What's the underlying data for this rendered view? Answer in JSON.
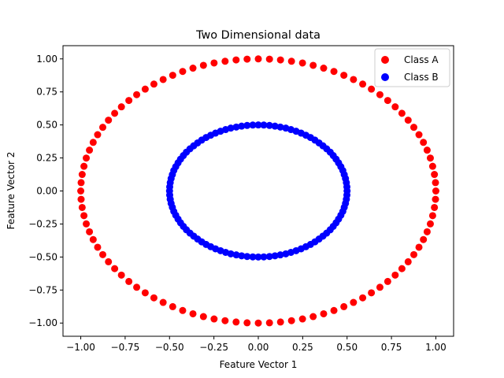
{
  "chart_data": {
    "type": "scatter",
    "title": "Two Dimensional data",
    "xlabel": "Feature Vector 1",
    "ylabel": "Feature Vector 2",
    "xlim": [
      -1.1,
      1.1
    ],
    "ylim": [
      -1.1,
      1.1
    ],
    "xticks": [
      -1.0,
      -0.75,
      -0.5,
      -0.25,
      0.0,
      0.25,
      0.5,
      0.75,
      1.0
    ],
    "yticks": [
      -1.0,
      -0.75,
      -0.5,
      -0.25,
      0.0,
      0.25,
      0.5,
      0.75,
      1.0
    ],
    "xtick_labels": [
      "−1.00",
      "−0.75",
      "−0.50",
      "−0.25",
      "0.00",
      "0.25",
      "0.50",
      "0.75",
      "1.00"
    ],
    "ytick_labels": [
      "−1.00",
      "−0.75",
      "−0.50",
      "−0.25",
      "0.00",
      "0.25",
      "0.50",
      "0.75",
      "1.00"
    ],
    "grid": false,
    "legend_position": "top-right",
    "series": [
      {
        "name": "Class A",
        "color": "#ff0000",
        "points": [
          [
            1.0,
            0.0
          ],
          [
            0.998,
            0.063
          ],
          [
            0.992,
            0.125
          ],
          [
            0.982,
            0.187
          ],
          [
            0.969,
            0.249
          ],
          [
            0.951,
            0.309
          ],
          [
            0.93,
            0.368
          ],
          [
            0.905,
            0.426
          ],
          [
            0.876,
            0.482
          ],
          [
            0.844,
            0.536
          ],
          [
            0.809,
            0.588
          ],
          [
            0.771,
            0.637
          ],
          [
            0.729,
            0.685
          ],
          [
            0.685,
            0.729
          ],
          [
            0.637,
            0.771
          ],
          [
            0.588,
            0.809
          ],
          [
            0.536,
            0.844
          ],
          [
            0.482,
            0.876
          ],
          [
            0.426,
            0.905
          ],
          [
            0.368,
            0.93
          ],
          [
            0.309,
            0.951
          ],
          [
            0.249,
            0.969
          ],
          [
            0.187,
            0.982
          ],
          [
            0.125,
            0.992
          ],
          [
            0.063,
            0.998
          ],
          [
            0.0,
            1.0
          ],
          [
            -0.063,
            0.998
          ],
          [
            -0.125,
            0.992
          ],
          [
            -0.187,
            0.982
          ],
          [
            -0.249,
            0.969
          ],
          [
            -0.309,
            0.951
          ],
          [
            -0.368,
            0.93
          ],
          [
            -0.426,
            0.905
          ],
          [
            -0.482,
            0.876
          ],
          [
            -0.536,
            0.844
          ],
          [
            -0.588,
            0.809
          ],
          [
            -0.637,
            0.771
          ],
          [
            -0.685,
            0.729
          ],
          [
            -0.729,
            0.685
          ],
          [
            -0.771,
            0.637
          ],
          [
            -0.809,
            0.588
          ],
          [
            -0.844,
            0.536
          ],
          [
            -0.876,
            0.482
          ],
          [
            -0.905,
            0.426
          ],
          [
            -0.93,
            0.368
          ],
          [
            -0.951,
            0.309
          ],
          [
            -0.969,
            0.249
          ],
          [
            -0.982,
            0.187
          ],
          [
            -0.992,
            0.125
          ],
          [
            -0.998,
            0.063
          ],
          [
            -1.0,
            0.0
          ],
          [
            -0.998,
            -0.063
          ],
          [
            -0.992,
            -0.125
          ],
          [
            -0.982,
            -0.187
          ],
          [
            -0.969,
            -0.249
          ],
          [
            -0.951,
            -0.309
          ],
          [
            -0.93,
            -0.368
          ],
          [
            -0.905,
            -0.426
          ],
          [
            -0.876,
            -0.482
          ],
          [
            -0.844,
            -0.536
          ],
          [
            -0.809,
            -0.588
          ],
          [
            -0.771,
            -0.637
          ],
          [
            -0.729,
            -0.685
          ],
          [
            -0.685,
            -0.729
          ],
          [
            -0.637,
            -0.771
          ],
          [
            -0.588,
            -0.809
          ],
          [
            -0.536,
            -0.844
          ],
          [
            -0.482,
            -0.876
          ],
          [
            -0.426,
            -0.905
          ],
          [
            -0.368,
            -0.93
          ],
          [
            -0.309,
            -0.951
          ],
          [
            -0.249,
            -0.969
          ],
          [
            -0.187,
            -0.982
          ],
          [
            -0.125,
            -0.992
          ],
          [
            -0.063,
            -0.998
          ],
          [
            0.0,
            -1.0
          ],
          [
            0.063,
            -0.998
          ],
          [
            0.125,
            -0.992
          ],
          [
            0.187,
            -0.982
          ],
          [
            0.249,
            -0.969
          ],
          [
            0.309,
            -0.951
          ],
          [
            0.368,
            -0.93
          ],
          [
            0.426,
            -0.905
          ],
          [
            0.482,
            -0.876
          ],
          [
            0.536,
            -0.844
          ],
          [
            0.588,
            -0.809
          ],
          [
            0.637,
            -0.771
          ],
          [
            0.685,
            -0.729
          ],
          [
            0.729,
            -0.685
          ],
          [
            0.771,
            -0.637
          ],
          [
            0.809,
            -0.588
          ],
          [
            0.844,
            -0.536
          ],
          [
            0.876,
            -0.482
          ],
          [
            0.905,
            -0.426
          ],
          [
            0.93,
            -0.368
          ],
          [
            0.951,
            -0.309
          ],
          [
            0.969,
            -0.249
          ],
          [
            0.982,
            -0.187
          ],
          [
            0.992,
            -0.125
          ],
          [
            0.998,
            -0.063
          ]
        ]
      },
      {
        "name": "Class B",
        "color": "#0000ff",
        "points": [
          [
            0.5,
            0.0
          ],
          [
            0.499,
            0.031
          ],
          [
            0.496,
            0.063
          ],
          [
            0.491,
            0.094
          ],
          [
            0.484,
            0.124
          ],
          [
            0.476,
            0.155
          ],
          [
            0.465,
            0.184
          ],
          [
            0.452,
            0.213
          ],
          [
            0.438,
            0.241
          ],
          [
            0.422,
            0.268
          ],
          [
            0.405,
            0.294
          ],
          [
            0.385,
            0.319
          ],
          [
            0.364,
            0.342
          ],
          [
            0.342,
            0.364
          ],
          [
            0.319,
            0.385
          ],
          [
            0.294,
            0.405
          ],
          [
            0.268,
            0.422
          ],
          [
            0.241,
            0.438
          ],
          [
            0.213,
            0.452
          ],
          [
            0.184,
            0.465
          ],
          [
            0.155,
            0.476
          ],
          [
            0.124,
            0.484
          ],
          [
            0.094,
            0.491
          ],
          [
            0.063,
            0.496
          ],
          [
            0.031,
            0.499
          ],
          [
            0.0,
            0.5
          ],
          [
            -0.031,
            0.499
          ],
          [
            -0.063,
            0.496
          ],
          [
            -0.094,
            0.491
          ],
          [
            -0.124,
            0.484
          ],
          [
            -0.155,
            0.476
          ],
          [
            -0.184,
            0.465
          ],
          [
            -0.213,
            0.452
          ],
          [
            -0.241,
            0.438
          ],
          [
            -0.268,
            0.422
          ],
          [
            -0.294,
            0.405
          ],
          [
            -0.319,
            0.385
          ],
          [
            -0.342,
            0.364
          ],
          [
            -0.364,
            0.342
          ],
          [
            -0.385,
            0.319
          ],
          [
            -0.405,
            0.294
          ],
          [
            -0.422,
            0.268
          ],
          [
            -0.438,
            0.241
          ],
          [
            -0.452,
            0.213
          ],
          [
            -0.465,
            0.184
          ],
          [
            -0.476,
            0.155
          ],
          [
            -0.484,
            0.124
          ],
          [
            -0.491,
            0.094
          ],
          [
            -0.496,
            0.063
          ],
          [
            -0.499,
            0.031
          ],
          [
            -0.5,
            0.0
          ],
          [
            -0.499,
            -0.031
          ],
          [
            -0.496,
            -0.063
          ],
          [
            -0.491,
            -0.094
          ],
          [
            -0.484,
            -0.124
          ],
          [
            -0.476,
            -0.155
          ],
          [
            -0.465,
            -0.184
          ],
          [
            -0.452,
            -0.213
          ],
          [
            -0.438,
            -0.241
          ],
          [
            -0.422,
            -0.268
          ],
          [
            -0.405,
            -0.294
          ],
          [
            -0.385,
            -0.319
          ],
          [
            -0.364,
            -0.342
          ],
          [
            -0.342,
            -0.364
          ],
          [
            -0.319,
            -0.385
          ],
          [
            -0.294,
            -0.405
          ],
          [
            -0.268,
            -0.422
          ],
          [
            -0.241,
            -0.438
          ],
          [
            -0.213,
            -0.452
          ],
          [
            -0.184,
            -0.465
          ],
          [
            -0.155,
            -0.476
          ],
          [
            -0.124,
            -0.484
          ],
          [
            -0.094,
            -0.491
          ],
          [
            -0.063,
            -0.496
          ],
          [
            -0.031,
            -0.499
          ],
          [
            0.0,
            -0.5
          ],
          [
            0.031,
            -0.499
          ],
          [
            0.063,
            -0.496
          ],
          [
            0.094,
            -0.491
          ],
          [
            0.124,
            -0.484
          ],
          [
            0.155,
            -0.476
          ],
          [
            0.184,
            -0.465
          ],
          [
            0.213,
            -0.452
          ],
          [
            0.241,
            -0.438
          ],
          [
            0.268,
            -0.422
          ],
          [
            0.294,
            -0.405
          ],
          [
            0.319,
            -0.385
          ],
          [
            0.342,
            -0.364
          ],
          [
            0.364,
            -0.342
          ],
          [
            0.385,
            -0.319
          ],
          [
            0.405,
            -0.294
          ],
          [
            0.422,
            -0.268
          ],
          [
            0.438,
            -0.241
          ],
          [
            0.452,
            -0.213
          ],
          [
            0.465,
            -0.184
          ],
          [
            0.476,
            -0.155
          ],
          [
            0.484,
            -0.124
          ],
          [
            0.491,
            -0.094
          ],
          [
            0.496,
            -0.063
          ],
          [
            0.499,
            -0.031
          ]
        ]
      }
    ]
  }
}
